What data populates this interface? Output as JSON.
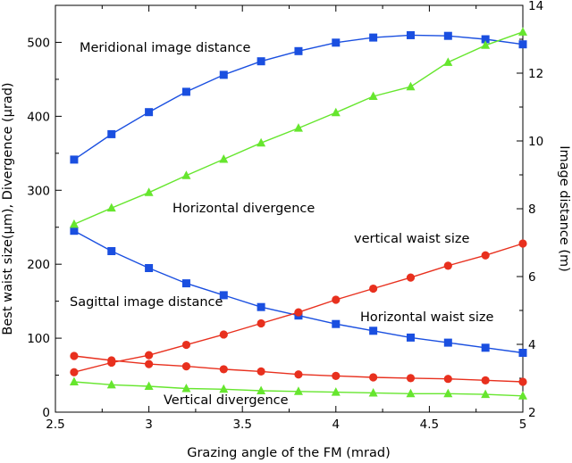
{
  "chart_data": {
    "type": "line",
    "xlabel": "Grazing angle of the FM (mrad)",
    "ylabel": "Best waist size(μm), Divergence (μrad)",
    "y2label": "Image distance (m)",
    "xlim": [
      2.5,
      5
    ],
    "ylim": [
      0,
      550
    ],
    "y2lim": [
      2,
      14
    ],
    "xticks": [
      "2.5",
      "3",
      "3.5",
      "4",
      "4.5",
      "5"
    ],
    "yticks": [
      "0",
      "100",
      "200",
      "300",
      "400",
      "500"
    ],
    "y2ticks": [
      "2",
      "4",
      "6",
      "8",
      "10",
      "12",
      "14"
    ],
    "grid": false,
    "x": [
      2.6,
      2.8,
      3.0,
      3.2,
      3.4,
      3.6,
      3.8,
      4.0,
      4.2,
      4.4,
      4.6,
      4.8,
      5.0
    ],
    "series": [
      {
        "name": "Meridional image distance",
        "axis": "right",
        "color": "#1a4fe0",
        "marker": "square",
        "values": [
          9.45,
          10.2,
          10.85,
          11.45,
          11.95,
          12.35,
          12.65,
          12.9,
          13.05,
          13.12,
          13.1,
          13.0,
          12.85
        ]
      },
      {
        "name": "Sagittal image distance",
        "axis": "right",
        "color": "#1a4fe0",
        "marker": "square",
        "values": [
          7.35,
          6.75,
          6.25,
          5.8,
          5.45,
          5.1,
          4.85,
          4.6,
          4.4,
          4.2,
          4.05,
          3.9,
          3.75
        ]
      },
      {
        "name": "Horizontal divergence",
        "axis": "left",
        "color": "#66e62e",
        "marker": "triangle",
        "values": [
          254,
          276,
          297,
          320,
          342,
          364,
          384,
          405,
          427,
          440,
          473,
          496,
          514
        ]
      },
      {
        "name": "vertical waist size",
        "axis": "left",
        "color": "#e8301e",
        "marker": "circle",
        "values": [
          54,
          67,
          77,
          91,
          105,
          120,
          135,
          152,
          167,
          182,
          198,
          212,
          228
        ]
      },
      {
        "name": "Horizontal waist size",
        "axis": "left",
        "color": "#e8301e",
        "marker": "circle",
        "values": [
          76,
          70,
          65,
          62,
          58,
          55,
          51,
          49,
          47,
          46,
          45,
          43,
          41
        ]
      },
      {
        "name": "Vertical divergence",
        "axis": "left",
        "color": "#66e62e",
        "marker": "triangle",
        "values": [
          41,
          37,
          35,
          32,
          31,
          29,
          28,
          27,
          26,
          25,
          25,
          24,
          22
        ]
      }
    ],
    "annotations": [
      "Meridional image distance",
      "Horizontal divergence",
      "vertical waist size",
      "Sagittal image distance",
      "Horizontal waist size",
      "Vertical divergence"
    ]
  }
}
